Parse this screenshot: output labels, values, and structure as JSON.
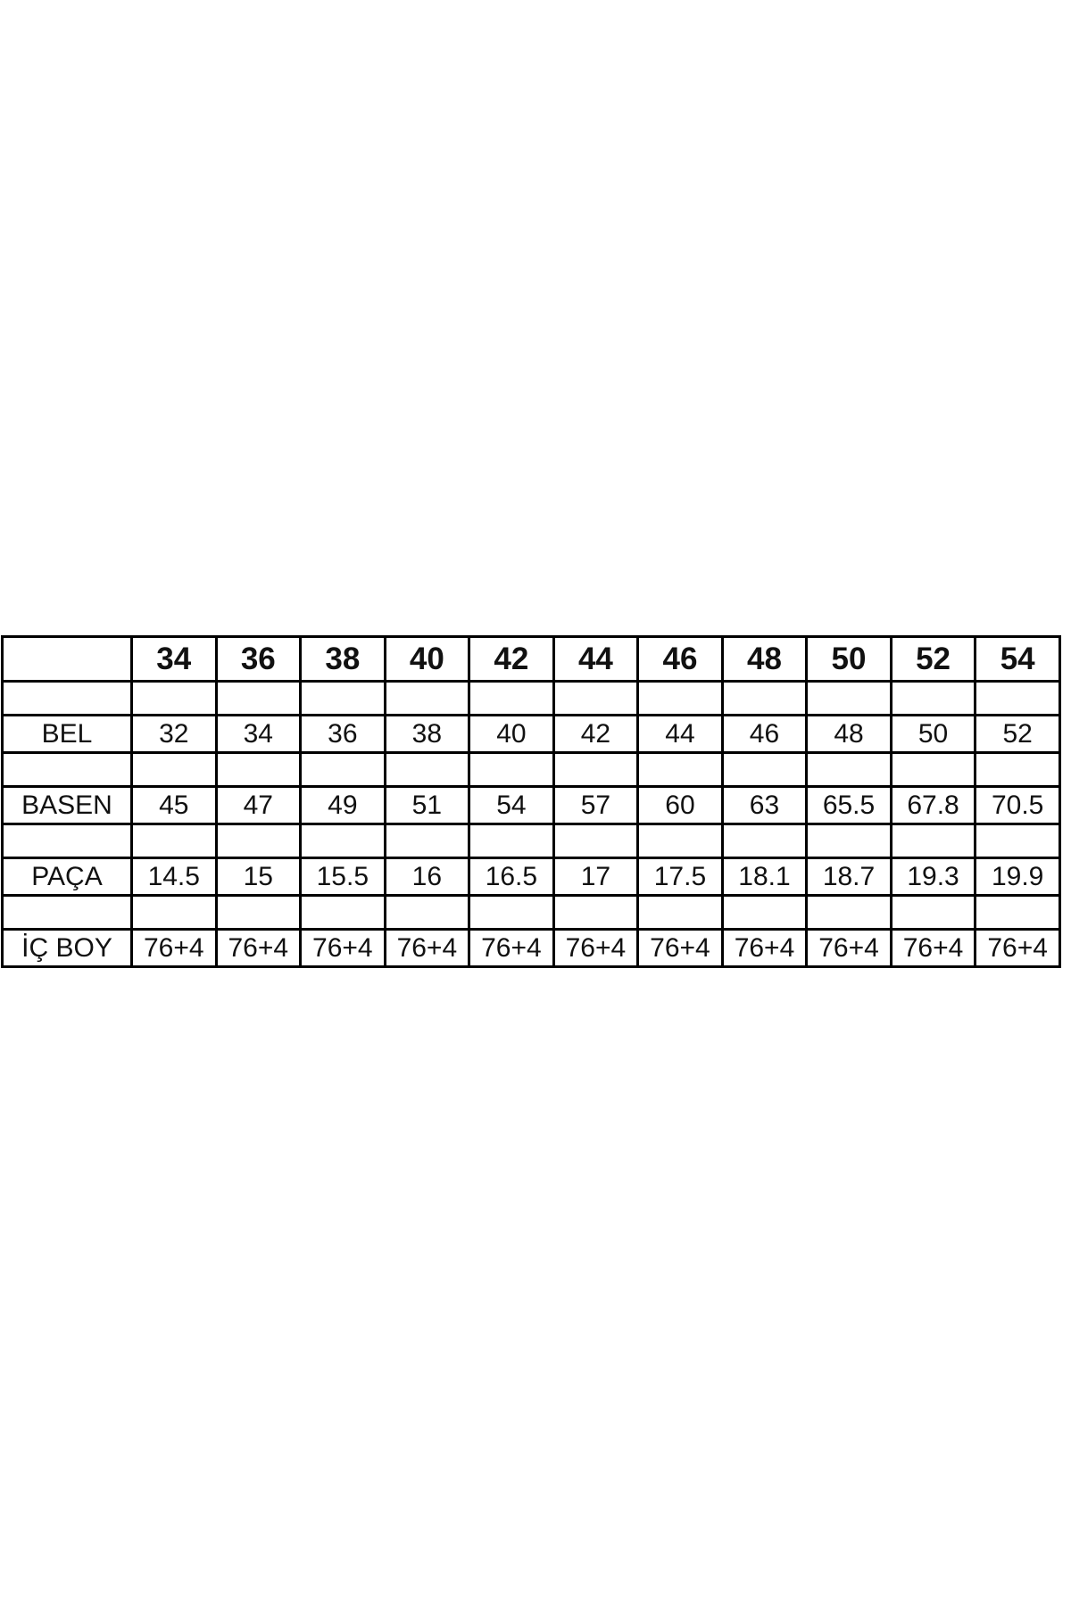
{
  "styles": {
    "accent_red": "#fa2217",
    "text_color": "#111111",
    "border_color": "#000000",
    "page_background": "#ffffff"
  },
  "chart_data": {
    "type": "table",
    "corner_label": "",
    "header_sizes": [
      "34",
      "36",
      "38",
      "40",
      "42",
      "44",
      "46",
      "48",
      "50",
      "52",
      "54"
    ],
    "highlight_column_index": 1,
    "rows": [
      {
        "label": "BEL",
        "values": [
          "32",
          "34",
          "36",
          "38",
          "40",
          "42",
          "44",
          "46",
          "48",
          "50",
          "52"
        ]
      },
      {
        "label": "BASEN",
        "values": [
          "45",
          "47",
          "49",
          "51",
          "54",
          "57",
          "60",
          "63",
          "65.5",
          "67.8",
          "70.5"
        ]
      },
      {
        "label": "PAÇA",
        "values": [
          "14.5",
          "15",
          "15.5",
          "16",
          "16.5",
          "17",
          "17.5",
          "18.1",
          "18.7",
          "19.3",
          "19.9"
        ]
      },
      {
        "label": "İÇ BOY",
        "values": [
          "76+4",
          "76+4",
          "76+4",
          "76+4",
          "76+4",
          "76+4",
          "76+4",
          "76+4",
          "76+4",
          "76+4",
          "76+4"
        ]
      }
    ],
    "layout": {
      "grid": "on",
      "header_text_style": "bold red",
      "highlighted_cells_color_meaning": "selected size column (36)"
    }
  }
}
